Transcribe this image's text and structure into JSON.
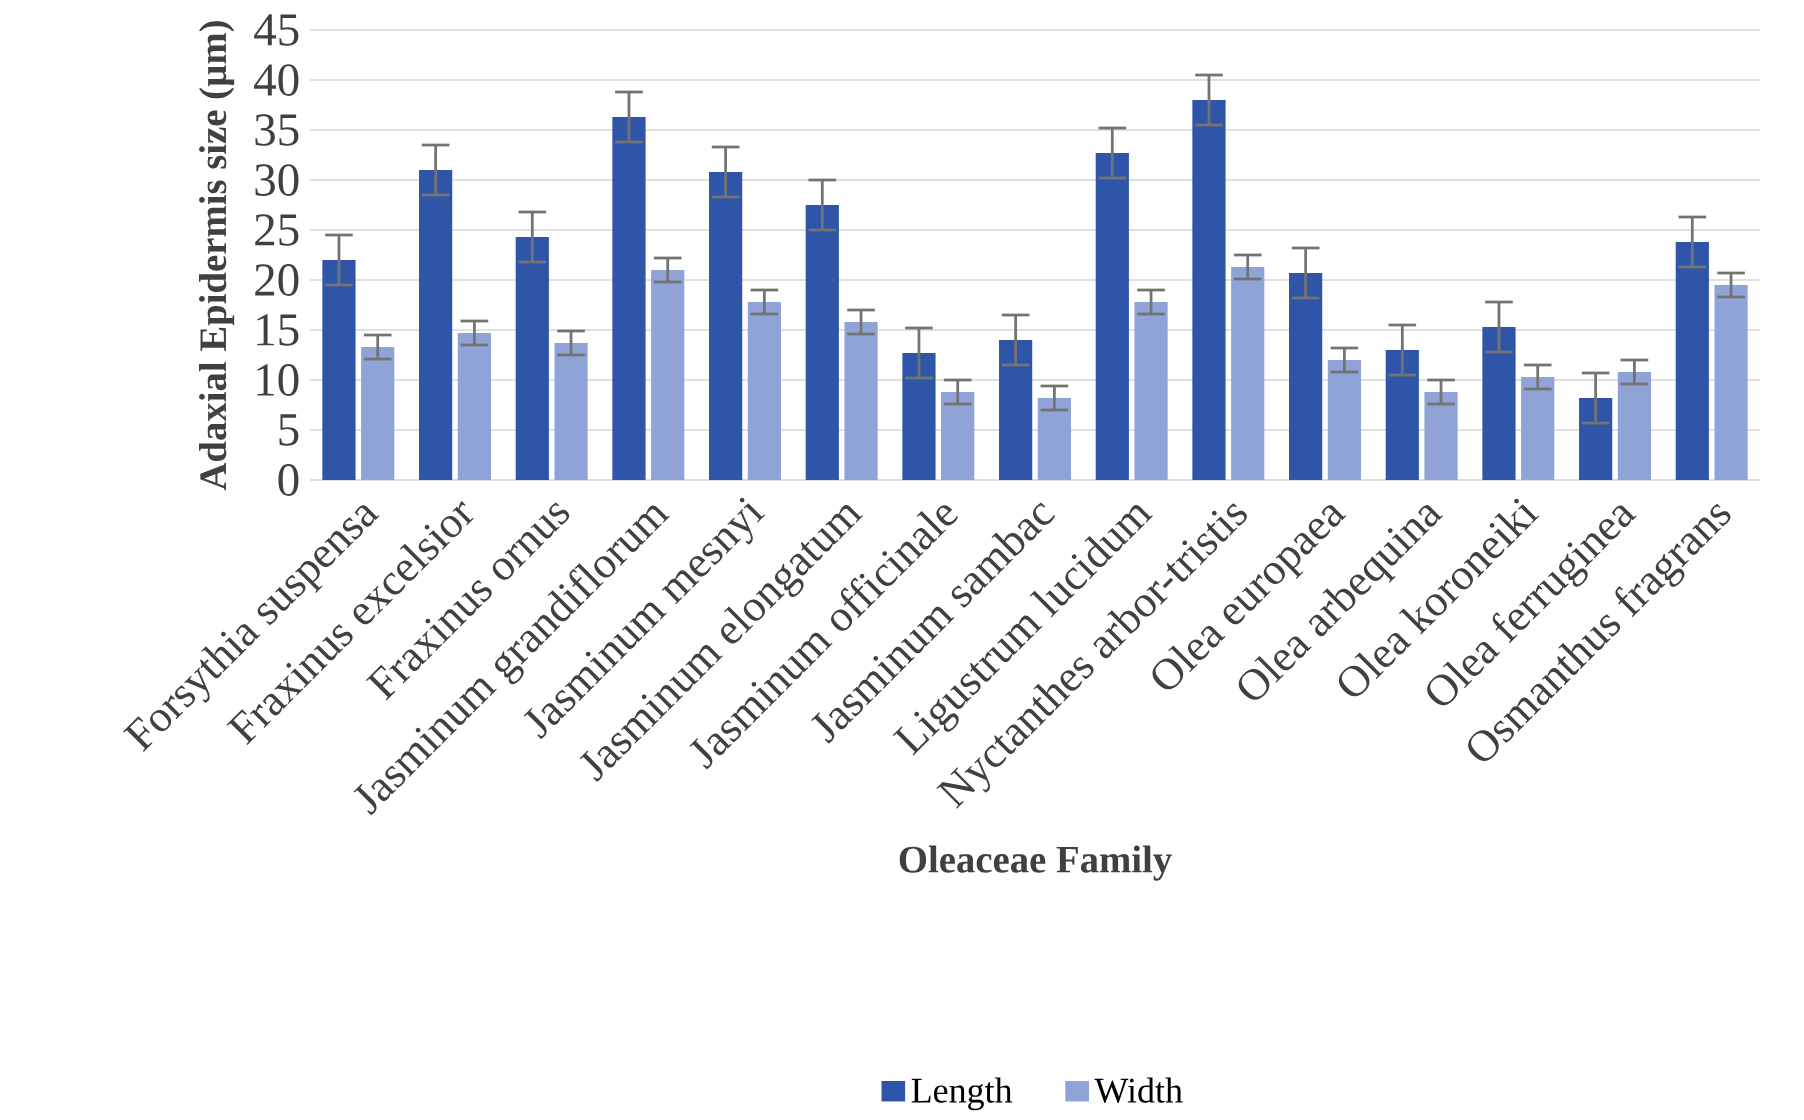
{
  "chart_data": {
    "type": "bar",
    "xlabel": "Oleaceae Family",
    "ylabel": "Adaxial Epidermis size (µm)",
    "categories": [
      "Forsythia suspensa",
      "Fraxinus excelsior",
      "Fraxinus ornus",
      "Jasminum grandiflorum",
      "Jasminum mesnyi",
      "Jasminum elongatum",
      "Jasminum officinale",
      "Jasminum sambac",
      "Ligustrum lucidum",
      "Nyctanthes arbor-tristis",
      "Olea europaea",
      "Olea arbequina",
      "Olea koroneiki",
      "Olea ferruginea",
      "Osmanthus fragrans"
    ],
    "series": [
      {
        "name": "Length",
        "color": "#2f55a8",
        "values": [
          22,
          31,
          24.3,
          36.3,
          30.8,
          27.5,
          12.7,
          14,
          32.7,
          38,
          20.7,
          13,
          15.3,
          8.2,
          23.8
        ],
        "errors": [
          2.5,
          2.5,
          2.5,
          2.5,
          2.5,
          2.5,
          2.5,
          2.5,
          2.5,
          2.5,
          2.5,
          2.5,
          2.5,
          2.5,
          2.5
        ]
      },
      {
        "name": "Width",
        "color": "#8fa3d6",
        "values": [
          13.3,
          14.7,
          13.7,
          21,
          17.8,
          15.8,
          8.8,
          8.2,
          17.8,
          21.3,
          12,
          8.8,
          10.3,
          10.8,
          19.5
        ],
        "errors": [
          1.2,
          1.2,
          1.2,
          1.2,
          1.2,
          1.2,
          1.2,
          1.2,
          1.2,
          1.2,
          1.2,
          1.2,
          1.2,
          1.2,
          1.2
        ]
      }
    ],
    "ylim": [
      0,
      45
    ],
    "yticks": [
      0,
      5,
      10,
      15,
      20,
      25,
      30,
      35,
      40,
      45
    ],
    "grid": "y",
    "legend": "bottom"
  }
}
